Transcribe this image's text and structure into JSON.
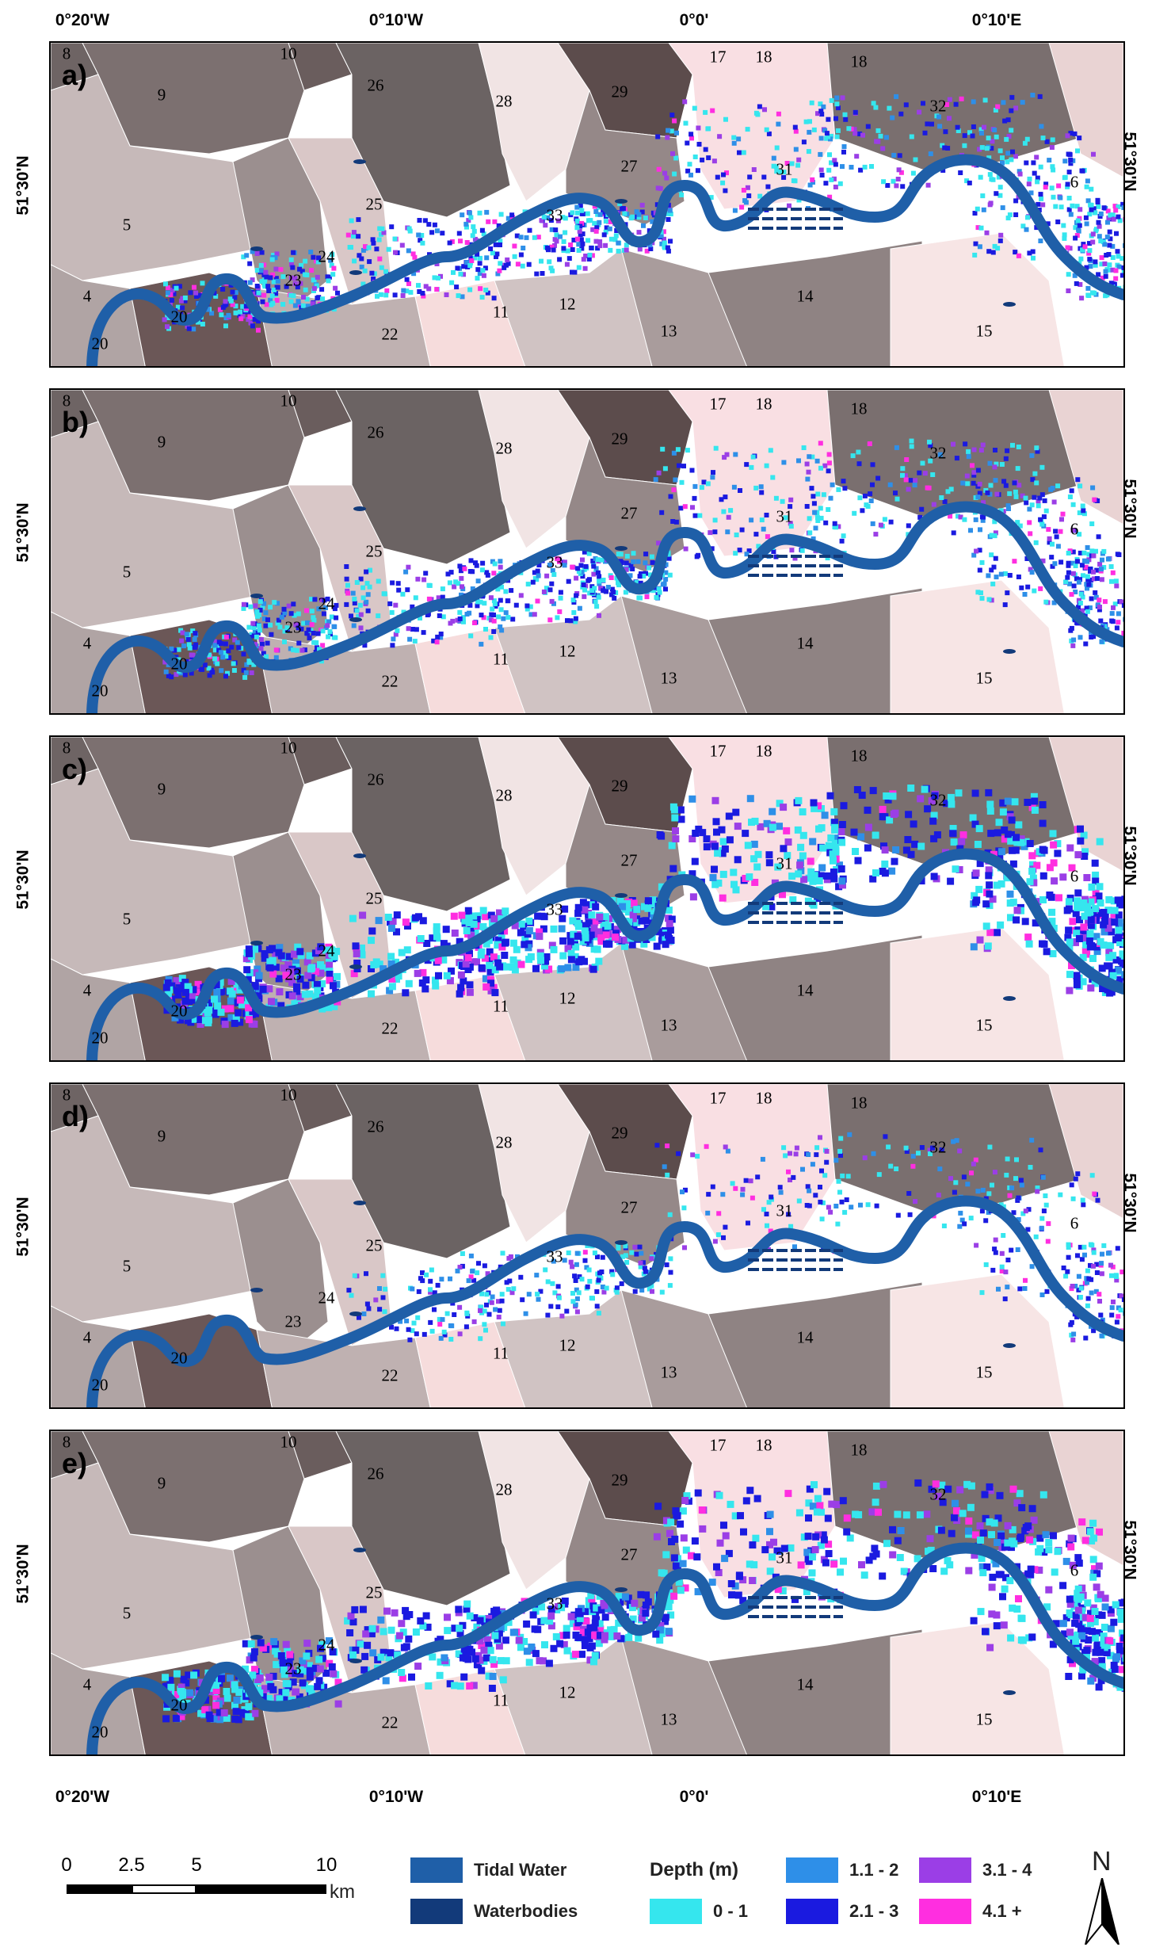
{
  "longitude_ticks": [
    "0°20'W",
    "0°10'W",
    "0°0'",
    "0°10'E"
  ],
  "latitude_label": "51°30'N",
  "panels": [
    {
      "letter": "a)"
    },
    {
      "letter": "b)"
    },
    {
      "letter": "c)"
    },
    {
      "letter": "d)"
    },
    {
      "letter": "e)"
    }
  ],
  "district_labels": [
    "8",
    "9",
    "10",
    "26",
    "28",
    "29",
    "17",
    "18",
    "18",
    "32",
    "31",
    "27",
    "25",
    "33",
    "5",
    "24",
    "23",
    "4",
    "20",
    "20",
    "22",
    "11",
    "12",
    "13",
    "14",
    "15",
    "6"
  ],
  "legend": {
    "scale_numbers": [
      "0",
      "2.5",
      "5",
      "10"
    ],
    "scale_unit": "km",
    "tidal_water": "Tidal Water",
    "waterbodies": "Waterbodies",
    "depth_title": "Depth (m)",
    "depth_classes": [
      "0 - 1",
      "1.1 - 2",
      "2.1 - 3",
      "3.1 - 4",
      "4.1 +"
    ],
    "north": "N"
  },
  "colors": {
    "tidal_water": "#1f5fa8",
    "waterbodies": "#123a7a",
    "depth_0_1": "#35e6ee",
    "depth_1_2": "#2e8fe8",
    "depth_2_3": "#1a1ae0",
    "depth_3_4": "#9b3ee6",
    "depth_4_plus": "#ff2ee0"
  }
}
